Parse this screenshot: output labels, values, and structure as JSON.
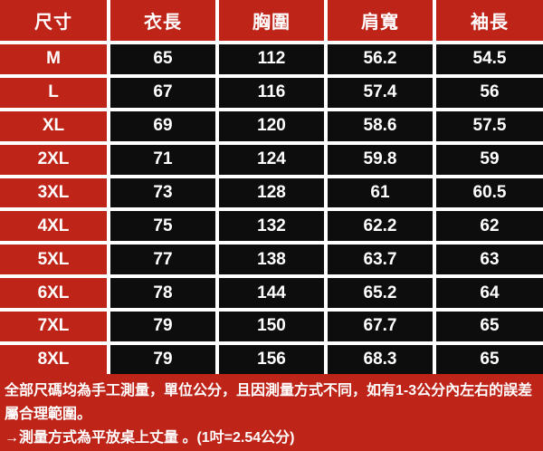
{
  "colors": {
    "red": "#BE2418",
    "cell_black": "#0D0D0D",
    "text_white": "#FFFFFF",
    "grid_white": "#FFFFFF"
  },
  "chart_data": {
    "type": "table",
    "title": "",
    "unit": "公分",
    "columns": [
      "尺寸",
      "衣長",
      "胸圍",
      "肩寬",
      "袖長"
    ],
    "rows": [
      [
        "M",
        65,
        112,
        56.2,
        54.5
      ],
      [
        "L",
        67,
        116,
        57.4,
        56
      ],
      [
        "XL",
        69,
        120,
        58.6,
        57.5
      ],
      [
        "2XL",
        71,
        124,
        59.8,
        59
      ],
      [
        "3XL",
        73,
        128,
        61,
        60.5
      ],
      [
        "4XL",
        75,
        132,
        62.2,
        62
      ],
      [
        "5XL",
        77,
        138,
        63.7,
        63
      ],
      [
        "6XL",
        78,
        144,
        65.2,
        64
      ],
      [
        "7XL",
        79,
        150,
        67.7,
        65
      ],
      [
        "8XL",
        79,
        156,
        68.3,
        65
      ]
    ]
  },
  "footer": {
    "lines": [
      "全部尺碼均為手工測量，單位公分，且因測量方式不同，如有1-3公分內左右的誤差屬合理範圍。",
      "→測量方式為平放桌上丈量 。(1吋=2.54公分)"
    ]
  }
}
